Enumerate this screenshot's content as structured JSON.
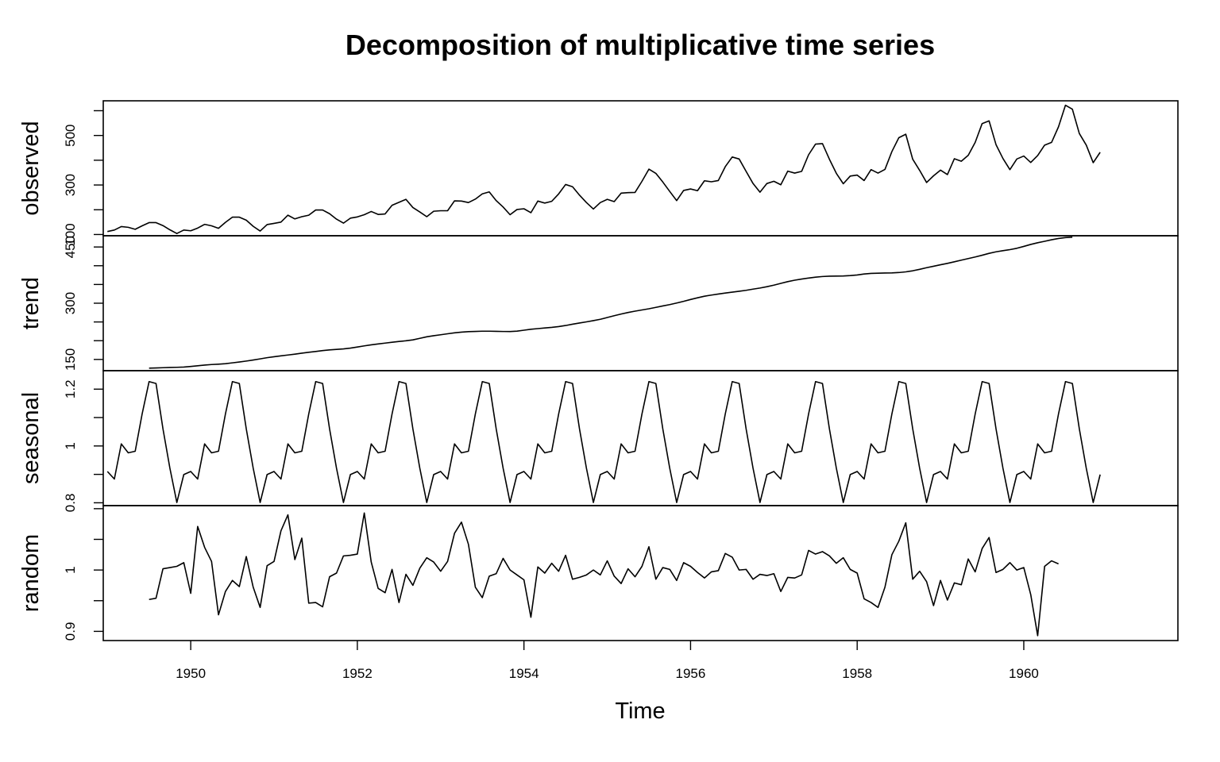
{
  "chart_data": {
    "type": "line",
    "title": "Decomposition of multiplicative time series",
    "xlabel": "Time",
    "x_start": 1949,
    "frequency": 12,
    "xlim": [
      1948.95,
      1961.85
    ],
    "xticks": [
      1950,
      1952,
      1954,
      1956,
      1958,
      1960
    ],
    "series": [
      {
        "name": "observed",
        "ylim": [
          95,
          640
        ],
        "yticks": [
          100,
          300,
          500
        ],
        "minor_yticks": [
          100,
          200,
          300,
          400,
          500,
          600
        ],
        "values": [
          112,
          118,
          132,
          129,
          121,
          135,
          148,
          148,
          136,
          119,
          104,
          118,
          115,
          126,
          141,
          135,
          125,
          149,
          170,
          170,
          158,
          133,
          114,
          140,
          145,
          150,
          178,
          163,
          172,
          178,
          199,
          199,
          184,
          162,
          146,
          166,
          171,
          180,
          193,
          181,
          183,
          218,
          230,
          242,
          209,
          191,
          172,
          194,
          196,
          196,
          236,
          235,
          229,
          243,
          264,
          272,
          237,
          211,
          180,
          201,
          204,
          188,
          235,
          227,
          234,
          264,
          302,
          293,
          259,
          229,
          203,
          229,
          242,
          233,
          267,
          269,
          270,
          315,
          364,
          347,
          312,
          274,
          237,
          278,
          284,
          277,
          317,
          313,
          318,
          374,
          413,
          405,
          355,
          306,
          271,
          306,
          315,
          301,
          356,
          348,
          355,
          422,
          465,
          467,
          404,
          347,
          305,
          336,
          340,
          318,
          362,
          348,
          363,
          435,
          491,
          505,
          404,
          359,
          310,
          337,
          360,
          342,
          406,
          396,
          420,
          472,
          548,
          559,
          463,
          407,
          362,
          405,
          417,
          391,
          419,
          461,
          472,
          535,
          622,
          606,
          508,
          461,
          390,
          432
        ]
      },
      {
        "name": "trend",
        "ylim": [
          120,
          480
        ],
        "yticks": [
          150,
          300,
          450
        ],
        "minor_yticks": [
          150,
          200,
          250,
          300,
          350,
          400,
          450
        ],
        "values": [
          null,
          null,
          null,
          null,
          null,
          null,
          126.79,
          127.25,
          127.96,
          128.58,
          129.0,
          129.75,
          131.25,
          133.08,
          134.92,
          136.42,
          137.42,
          138.75,
          140.92,
          143.17,
          145.71,
          148.42,
          151.54,
          154.71,
          157.13,
          159.54,
          161.83,
          164.13,
          166.67,
          169.08,
          171.25,
          173.58,
          175.46,
          176.83,
          178.04,
          180.17,
          183.13,
          186.21,
          189.04,
          191.29,
          193.58,
          195.83,
          198.04,
          199.75,
          202.21,
          206.25,
          210.42,
          213.38,
          215.83,
          218.5,
          220.92,
          222.92,
          224.08,
          224.71,
          225.33,
          225.33,
          224.96,
          224.58,
          224.46,
          225.54,
          228.0,
          230.46,
          232.25,
          233.92,
          235.63,
          237.75,
          240.5,
          243.96,
          247.17,
          250.25,
          253.5,
          257.13,
          261.83,
          266.67,
          271.13,
          275.21,
          278.83,
          282.0,
          285.13,
          288.88,
          292.67,
          296.25,
          300.46,
          304.96,
          309.96,
          314.42,
          318.63,
          321.75,
          324.5,
          327.08,
          329.54,
          331.83,
          334.46,
          337.54,
          340.54,
          344.08,
          348.25,
          353.0,
          357.63,
          361.38,
          364.5,
          367.17,
          369.46,
          371.21,
          372.17,
          372.42,
          372.75,
          373.63,
          375.25,
          377.92,
          379.5,
          380.0,
          380.71,
          380.96,
          381.83,
          383.67,
          386.5,
          390.33,
          394.71,
          398.63,
          402.54,
          406.33,
          410.54,
          414.83,
          419.17,
          423.33,
          428.0,
          433.0,
          437.17,
          440.17,
          442.92,
          446.58,
          451.58,
          456.83,
          461.38,
          465.21,
          469.33,
          472.75,
          475.04,
          476.21,
          null,
          null,
          null,
          null,
          null,
          null
        ]
      },
      {
        "name": "seasonal",
        "ylim": [
          0.79,
          1.265
        ],
        "yticks": [
          0.8,
          1.0,
          1.2
        ],
        "minor_yticks": [
          0.8,
          0.9,
          1.0,
          1.1,
          1.2
        ],
        "values": [
          0.9102,
          0.8836,
          1.0073,
          0.9759,
          0.9813,
          1.1127,
          1.2265,
          1.2199,
          1.0604,
          0.9217,
          0.8011,
          0.8993,
          0.9102,
          0.8836,
          1.0073,
          0.9759,
          0.9813,
          1.1127,
          1.2265,
          1.2199,
          1.0604,
          0.9217,
          0.8011,
          0.8993,
          0.9102,
          0.8836,
          1.0073,
          0.9759,
          0.9813,
          1.1127,
          1.2265,
          1.2199,
          1.0604,
          0.9217,
          0.8011,
          0.8993,
          0.9102,
          0.8836,
          1.0073,
          0.9759,
          0.9813,
          1.1127,
          1.2265,
          1.2199,
          1.0604,
          0.9217,
          0.8011,
          0.8993,
          0.9102,
          0.8836,
          1.0073,
          0.9759,
          0.9813,
          1.1127,
          1.2265,
          1.2199,
          1.0604,
          0.9217,
          0.8011,
          0.8993,
          0.9102,
          0.8836,
          1.0073,
          0.9759,
          0.9813,
          1.1127,
          1.2265,
          1.2199,
          1.0604,
          0.9217,
          0.8011,
          0.8993,
          0.9102,
          0.8836,
          1.0073,
          0.9759,
          0.9813,
          1.1127,
          1.2265,
          1.2199,
          1.0604,
          0.9217,
          0.8011,
          0.8993,
          0.9102,
          0.8836,
          1.0073,
          0.9759,
          0.9813,
          1.1127,
          1.2265,
          1.2199,
          1.0604,
          0.9217,
          0.8011,
          0.8993,
          0.9102,
          0.8836,
          1.0073,
          0.9759,
          0.9813,
          1.1127,
          1.2265,
          1.2199,
          1.0604,
          0.9217,
          0.8011,
          0.8993,
          0.9102,
          0.8836,
          1.0073,
          0.9759,
          0.9813,
          1.1127,
          1.2265,
          1.2199,
          1.0604,
          0.9217,
          0.8011,
          0.8993,
          0.9102,
          0.8836,
          1.0073,
          0.9759,
          0.9813,
          1.1127,
          1.2265,
          1.2199,
          1.0604,
          0.9217,
          0.8011,
          0.8993,
          0.9102,
          0.8836,
          1.0073,
          0.9759,
          0.9813,
          1.1127,
          1.2265,
          1.2199,
          1.0604,
          0.9217,
          0.8011,
          0.8993
        ]
      },
      {
        "name": "random",
        "ylim": [
          0.885,
          1.105
        ],
        "yticks": [
          0.9,
          1.0
        ],
        "minor_yticks": [
          0.9,
          0.95,
          1.0,
          1.05,
          1.1
        ],
        "values": [
          null,
          null,
          null,
          null,
          null,
          null,
          0.952,
          0.954,
          1.002,
          1.004,
          1.006,
          1.012,
          0.962,
          1.071,
          1.037,
          1.014,
          0.927,
          0.965,
          0.983,
          0.973,
          1.022,
          0.972,
          0.939,
          1.007,
          1.014,
          1.064,
          1.09,
          1.017,
          1.052,
          0.946,
          0.947,
          0.94,
          0.989,
          0.995,
          1.023,
          1.024,
          1.026,
          1.093,
          1.013,
          0.97,
          0.963,
          1.001,
          0.947,
          0.993,
          0.975,
          1.003,
          1.02,
          1.013,
          0.998,
          1.014,
          1.06,
          1.078,
          1.042,
          0.972,
          0.955,
          0.99,
          0.994,
          1.019,
          1.0,
          0.992,
          0.984,
          0.923,
          1.005,
          0.995,
          1.011,
          0.998,
          1.024,
          0.985,
          0.988,
          0.992,
          1.0,
          0.992,
          1.015,
          0.99,
          0.978,
          1.002,
          0.989,
          1.006,
          1.038,
          0.985,
          1.004,
          1.001,
          0.983,
          1.012,
          1.006,
          0.996,
          0.987,
          0.997,
          0.999,
          1.027,
          1.021,
          1.0,
          1.001,
          0.985,
          0.993,
          0.991,
          0.994,
          0.965,
          0.988,
          0.987,
          0.992,
          1.032,
          1.026,
          1.03,
          1.023,
          1.011,
          1.02,
          1.001,
          0.995,
          0.953,
          0.947,
          0.939,
          0.972,
          1.025,
          1.047,
          1.077,
          0.985,
          0.998,
          0.981,
          0.942,
          0.983,
          0.951,
          0.979,
          0.976,
          1.018,
          0.997,
          1.035,
          1.053,
          0.996,
          1.001,
          1.012,
          1.0,
          1.004,
          0.96,
          0.893,
          1.006,
          1.015,
          1.01,
          null,
          null,
          null,
          null,
          null,
          null
        ]
      }
    ]
  }
}
